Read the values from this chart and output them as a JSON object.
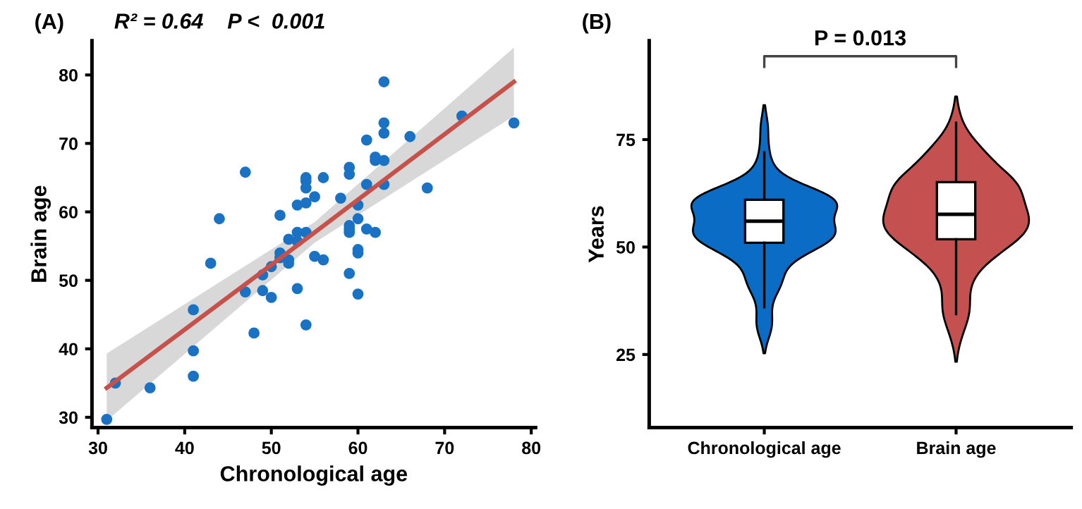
{
  "chart_data": [
    {
      "type": "scatter",
      "title": "(A)",
      "xlabel": "Chronological age",
      "ylabel": "Brain age",
      "annotations": [
        "R² = 0.64    P <  0.001"
      ],
      "xlim": [
        29.3,
        80.5
      ],
      "ylim": [
        28.5,
        85
      ],
      "xticks": [
        30,
        40,
        50,
        60,
        70,
        80
      ],
      "yticks": [
        30,
        40,
        50,
        60,
        70,
        80
      ],
      "grid": false,
      "series": [
        {
          "type": "scatter",
          "marker": "circle",
          "color": "#1a72c4",
          "x": [
            31,
            32,
            36,
            41,
            41,
            41,
            43,
            44,
            47,
            47,
            48,
            49,
            49,
            50,
            50,
            51,
            51,
            51,
            52,
            52,
            52,
            53,
            53,
            53,
            53,
            54,
            54,
            54,
            54,
            54,
            54,
            55,
            55,
            56,
            56,
            58,
            59,
            59,
            59,
            59,
            59,
            59,
            60,
            60,
            60,
            60,
            60,
            61,
            61,
            61,
            62,
            62,
            62,
            63,
            63,
            63,
            63,
            63,
            66,
            68,
            72,
            78
          ],
          "values": [
            29.7,
            35,
            34.3,
            45.7,
            39.7,
            36,
            52.5,
            59,
            48.3,
            65.8,
            42.3,
            50.8,
            48.5,
            47.5,
            52,
            53.3,
            54,
            59.5,
            53,
            52.5,
            56,
            55.7,
            57,
            48.8,
            61,
            57,
            43.5,
            61.3,
            63.5,
            64.5,
            65,
            62.2,
            53.5,
            53,
            65,
            62,
            51,
            57,
            57.5,
            58,
            66.5,
            65.5,
            54,
            54.5,
            48,
            59,
            61,
            57.5,
            64,
            70.5,
            57,
            67.5,
            68,
            73,
            71.5,
            67.5,
            64,
            79,
            71,
            63.5,
            74,
            73
          ]
        },
        {
          "type": "line",
          "color": "#c8504a",
          "x": [
            31,
            55,
            78
          ],
          "values": [
            34.3,
            57,
            79
          ],
          "lower": [
            29.5,
            55.5,
            74
          ],
          "upper": [
            39.3,
            58.5,
            84
          ]
        }
      ]
    },
    {
      "type": "box",
      "title": "(B)",
      "ylabel": "Years",
      "categories": [
        "Chronological age",
        "Brain age"
      ],
      "ylim": [
        8,
        98
      ],
      "yticks": [
        25,
        50,
        75
      ],
      "grid": false,
      "annotations": [
        "P = 0.013"
      ],
      "boxes": [
        {
          "low": 36,
          "q1": 51,
          "median": 56,
          "q3": 61,
          "high": 72
        },
        {
          "low": 34.4,
          "q1": 51.8,
          "median": 57.6,
          "q3": 65.1,
          "high": 78.9
        }
      ]
    }
  ]
}
